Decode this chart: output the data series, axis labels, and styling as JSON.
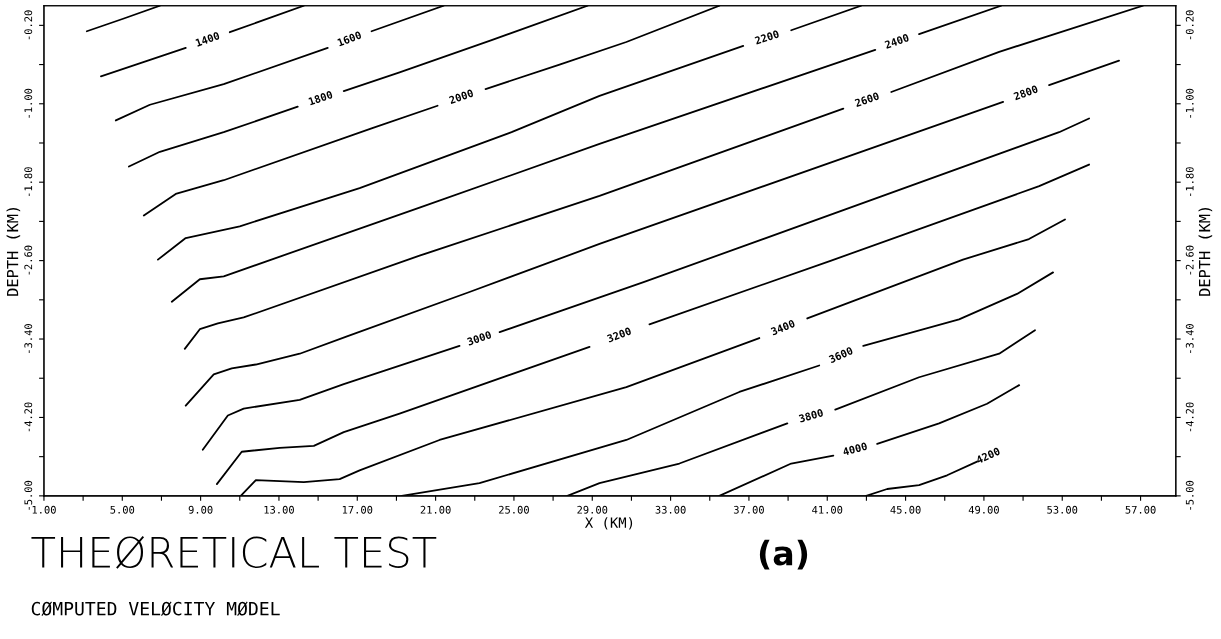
{
  "chart_data": {
    "type": "line",
    "title": "THEØRETICAL TEST",
    "subtitle": "CØMPUTED VELØCITY MØDEL",
    "xlabel": "X (KM)",
    "ylabel": "DEPTH (KM)",
    "y2label": "DEPTH (KM)",
    "annotations": [
      "(a)"
    ],
    "xlim": [
      1,
      58.8
    ],
    "ylim": [
      -5,
      0
    ],
    "y2lim": [
      -5,
      0
    ],
    "xticks": [
      {
        "value": 1,
        "label": "1.00"
      },
      {
        "value": 3,
        "label": null
      },
      {
        "value": 5,
        "label": "5.00"
      },
      {
        "value": 7,
        "label": null
      },
      {
        "value": 9,
        "label": "9.00"
      },
      {
        "value": 11,
        "label": null
      },
      {
        "value": 13,
        "label": "13.00"
      },
      {
        "value": 15,
        "label": null
      },
      {
        "value": 17,
        "label": "17.00"
      },
      {
        "value": 19,
        "label": null
      },
      {
        "value": 21,
        "label": "21.00"
      },
      {
        "value": 23,
        "label": null
      },
      {
        "value": 25,
        "label": "25.00"
      },
      {
        "value": 27,
        "label": null
      },
      {
        "value": 29,
        "label": "29.00"
      },
      {
        "value": 31,
        "label": null
      },
      {
        "value": 33,
        "label": "33.00"
      },
      {
        "value": 35,
        "label": null
      },
      {
        "value": 37,
        "label": "37.00"
      },
      {
        "value": 39,
        "label": null
      },
      {
        "value": 41,
        "label": "41.00"
      },
      {
        "value": 43,
        "label": null
      },
      {
        "value": 45,
        "label": "45.00"
      },
      {
        "value": 47,
        "label": null
      },
      {
        "value": 49,
        "label": "49.00"
      },
      {
        "value": 51,
        "label": null
      },
      {
        "value": 53,
        "label": "53.00"
      },
      {
        "value": 55,
        "label": null
      },
      {
        "value": 57,
        "label": "57.00"
      }
    ],
    "yticks": [
      {
        "value": -0.2,
        "label": "-0.20"
      },
      {
        "value": -0.6,
        "label": null
      },
      {
        "value": -1.0,
        "label": "-1.00"
      },
      {
        "value": -1.4,
        "label": null
      },
      {
        "value": -1.8,
        "label": "-1.80"
      },
      {
        "value": -2.2,
        "label": null
      },
      {
        "value": -2.6,
        "label": "-2.60"
      },
      {
        "value": -3.0,
        "label": null
      },
      {
        "value": -3.4,
        "label": "-3.40"
      },
      {
        "value": -3.8,
        "label": null
      },
      {
        "value": -4.2,
        "label": "-4.20"
      },
      {
        "value": -4.6,
        "label": null
      },
      {
        "value": -5.0,
        "label": "-5.00"
      }
    ],
    "y2ticks": [
      {
        "value": -0.2,
        "label": "-0.20"
      },
      {
        "value": -0.6,
        "label": null
      },
      {
        "value": -1.0,
        "label": "-1.00"
      },
      {
        "value": -1.4,
        "label": null
      },
      {
        "value": -1.8,
        "label": "-1.80"
      },
      {
        "value": -2.2,
        "label": null
      },
      {
        "value": -2.6,
        "label": "-2.60"
      },
      {
        "value": -3.0,
        "label": null
      },
      {
        "value": -3.4,
        "label": "-3.40"
      },
      {
        "value": -3.8,
        "label": null
      },
      {
        "value": -4.2,
        "label": "-4.20"
      },
      {
        "value": -4.6,
        "label": null
      },
      {
        "value": -5.0,
        "label": "-5.00"
      }
    ],
    "series": [
      {
        "color": "#000000",
        "x": [
          3.19,
          5.08,
          6.92
        ],
        "values": [
          -0.26,
          -0.13,
          0.0
        ]
      },
      {
        "name": "1400",
        "color": "#000000",
        "x": [
          3.91,
          8.24,
          9.4,
          10.49,
          14.27
        ],
        "values": [
          -0.72,
          -0.43,
          null,
          -0.27,
          0.0
        ]
      },
      {
        "name": "1600",
        "color": "#000000",
        "x": [
          4.67,
          6.41,
          10.18,
          15.49,
          16.6,
          17.73,
          21.41
        ],
        "values": [
          -1.17,
          -1.01,
          -0.8,
          -0.43,
          null,
          -0.26,
          0.0
        ]
      },
      {
        "name": "1800",
        "color": "#000000",
        "x": [
          5.34,
          6.92,
          10.18,
          13.96,
          15.1,
          16.31,
          19.16,
          23.86,
          28.76
        ],
        "values": [
          -1.64,
          -1.49,
          -1.29,
          -1.03,
          null,
          -0.87,
          -0.68,
          -0.35,
          0.0
        ]
      },
      {
        "name": "2000",
        "color": "#000000",
        "x": [
          6.1,
          7.73,
          10.18,
          17.73,
          21.1,
          22.3,
          23.55,
          27.33,
          30.74,
          35.49
        ],
        "values": [
          -2.14,
          -1.92,
          -1.78,
          -1.25,
          -1.02,
          null,
          -0.85,
          -0.6,
          -0.37,
          0.0
        ]
      },
      {
        "name": "2200",
        "color": "#000000",
        "x": [
          6.82,
          8.24,
          11.0,
          17.12,
          24.88,
          29.37,
          36.71,
          37.9,
          39.16,
          42.73
        ],
        "values": [
          -2.59,
          -2.37,
          -2.25,
          -1.86,
          -1.29,
          -0.92,
          -0.41,
          null,
          -0.25,
          0.0
        ]
      },
      {
        "name": "2400",
        "color": "#000000",
        "x": [
          7.53,
          8.96,
          10.18,
          20.18,
          29.37,
          43.45,
          44.6,
          45.69,
          49.88
        ],
        "values": [
          -3.02,
          -2.79,
          -2.76,
          -2.06,
          -1.41,
          -0.45,
          null,
          -0.29,
          0.0
        ]
      },
      {
        "name": "2600",
        "color": "#000000",
        "x": [
          8.19,
          8.96,
          9.88,
          11.2,
          20.18,
          29.37,
          41.82,
          43.0,
          44.27,
          49.78,
          57.12
        ],
        "values": [
          -3.5,
          -3.3,
          -3.24,
          -3.18,
          -2.55,
          -1.94,
          -1.05,
          null,
          -0.88,
          -0.47,
          0.0
        ]
      },
      {
        "name": "2800",
        "color": "#000000",
        "x": [
          8.24,
          9.67,
          10.59,
          11.82,
          14.06,
          16.51,
          22.73,
          29.37,
          49.98,
          51.2,
          52.33,
          55.9
        ],
        "values": [
          -4.08,
          -3.76,
          -3.7,
          -3.66,
          -3.55,
          -3.37,
          -2.92,
          -2.43,
          -0.98,
          null,
          -0.81,
          -0.56
        ]
      },
      {
        "name": "3000",
        "color": "#000000",
        "x": [
          9.11,
          10.39,
          11.2,
          14.06,
          16.31,
          22.22,
          23.2,
          24.27,
          31.62,
          52.84,
          54.37
        ],
        "values": [
          -4.53,
          -4.18,
          -4.11,
          -4.02,
          -3.86,
          -3.47,
          null,
          -3.33,
          -2.82,
          -1.29,
          -1.15
        ]
      },
      {
        "name": "3200",
        "color": "#000000",
        "x": [
          9.83,
          11.1,
          13.04,
          14.78,
          16.31,
          19.16,
          28.86,
          30.4,
          31.92,
          41.2,
          51.82,
          54.37
        ],
        "values": [
          -4.88,
          -4.55,
          -4.51,
          -4.49,
          -4.35,
          -4.16,
          -3.48,
          null,
          -3.25,
          -2.6,
          -1.84,
          -1.62
        ]
      },
      {
        "name": "3400",
        "color": "#000000",
        "x": [
          11.05,
          11.82,
          14.27,
          16.1,
          17.12,
          21.2,
          30.74,
          37.53,
          38.7,
          39.98,
          47.93,
          51.3,
          53.14
        ],
        "values": [
          -5.0,
          -4.84,
          -4.86,
          -4.83,
          -4.74,
          -4.43,
          -3.89,
          -3.39,
          null,
          -3.19,
          -2.59,
          -2.38,
          -2.18
        ]
      },
      {
        "name": "3600",
        "color": "#000000",
        "x": [
          19.27,
          23.24,
          30.74,
          36.51,
          40.59,
          41.7,
          42.84,
          47.73,
          50.69,
          52.53
        ],
        "values": [
          -5.0,
          -4.87,
          -4.43,
          -3.94,
          -3.67,
          null,
          -3.47,
          -3.2,
          -2.94,
          -2.72
        ]
      },
      {
        "name": "3800",
        "color": "#000000",
        "x": [
          27.73,
          29.37,
          33.45,
          38.96,
          40.2,
          41.41,
          45.69,
          49.78,
          50.69,
          51.61
        ],
        "values": [
          -5.0,
          -4.87,
          -4.67,
          -4.26,
          null,
          -4.12,
          -3.79,
          -3.55,
          -3.43,
          -3.31
        ]
      },
      {
        "name": "4000",
        "color": "#000000",
        "x": [
          35.49,
          39.16,
          41.31,
          42.4,
          43.55,
          46.71,
          49.16,
          50.8
        ],
        "values": [
          -5.0,
          -4.67,
          -4.59,
          null,
          -4.47,
          -4.26,
          -4.06,
          -3.87
        ]
      },
      {
        "name": "4200",
        "color": "#000000",
        "x": [
          42.99,
          44.06,
          45.69,
          47.12,
          48.65
        ],
        "values": [
          -5.0,
          -4.93,
          -4.89,
          -4.79,
          -4.65
        ]
      }
    ]
  }
}
